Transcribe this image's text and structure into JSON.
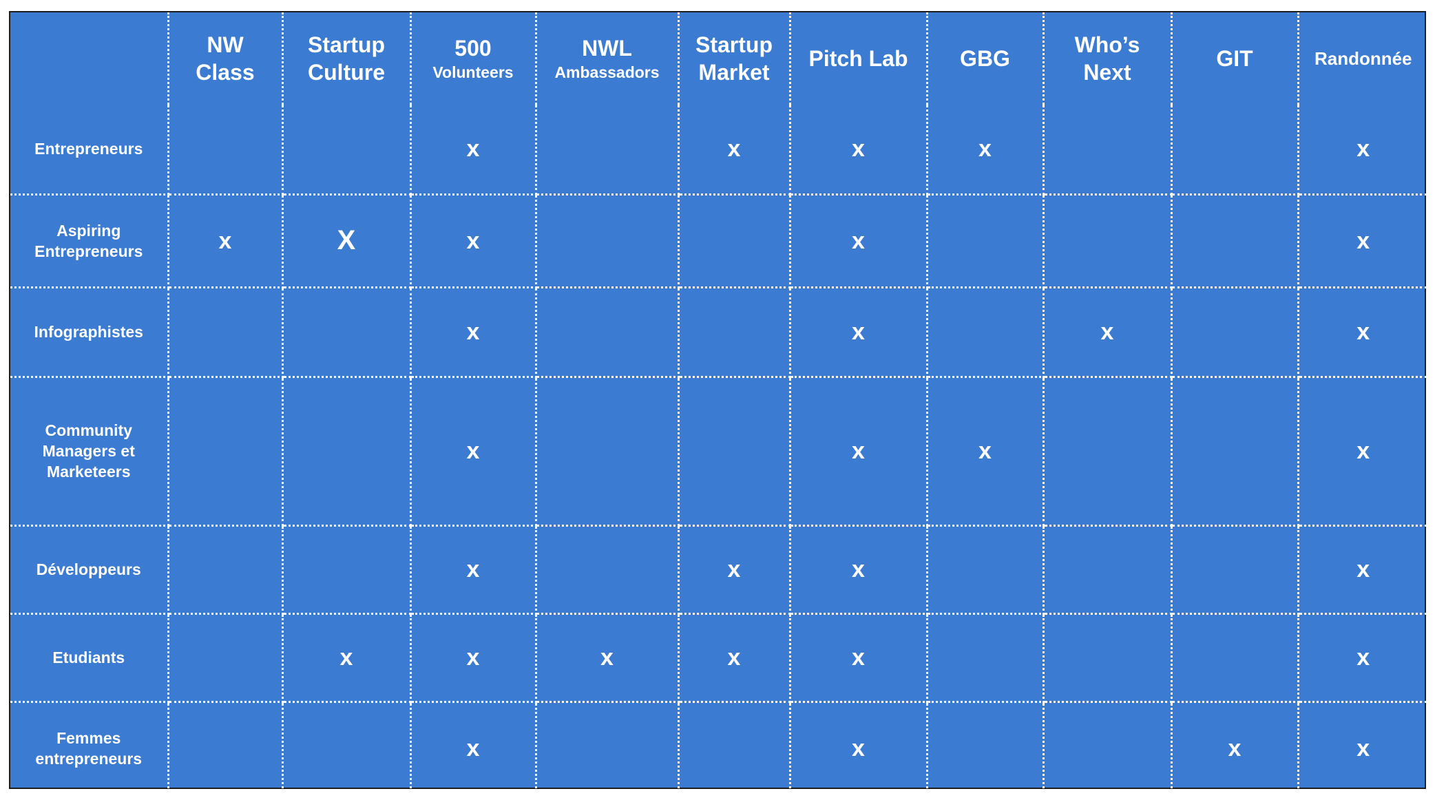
{
  "chart_data": {
    "type": "table",
    "columns": [
      {
        "line1": "NW",
        "line2": "Class",
        "style": "two-big"
      },
      {
        "line1": "Startup",
        "line2": "Culture",
        "style": "two-big"
      },
      {
        "line1": "500",
        "line2": "Volunteers",
        "style": "big-small"
      },
      {
        "line1": "NWL",
        "line2": "Ambassadors",
        "style": "big-small"
      },
      {
        "line1": "Startup",
        "line2": "Market",
        "style": "two-big"
      },
      {
        "line1": "Pitch Lab",
        "line2": "",
        "style": "one-big"
      },
      {
        "line1": "GBG",
        "line2": "",
        "style": "one-big"
      },
      {
        "line1": "Who’s",
        "line2": "Next",
        "style": "two-big"
      },
      {
        "line1": "GIT",
        "line2": "",
        "style": "one-big"
      },
      {
        "line1": "Randonnée",
        "line2": "",
        "style": "one-small"
      }
    ],
    "rows": [
      {
        "label": "Entrepreneurs",
        "cells": [
          "",
          "",
          "x",
          "",
          "x",
          "x",
          "x",
          "",
          "",
          "x"
        ]
      },
      {
        "label": "Aspiring\nEntrepreneurs",
        "cells": [
          "x",
          "X",
          "x",
          "",
          "",
          "x",
          "",
          "",
          "",
          "x"
        ]
      },
      {
        "label": "Infographistes",
        "cells": [
          "",
          "",
          "x",
          "",
          "",
          "x",
          "",
          "x",
          "",
          "x"
        ]
      },
      {
        "label": "Community\nManagers et\nMarketeers",
        "cells": [
          "",
          "",
          "x",
          "",
          "",
          "x",
          "x",
          "",
          "",
          "x"
        ]
      },
      {
        "label": "Développeurs",
        "cells": [
          "",
          "",
          "x",
          "",
          "x",
          "x",
          "",
          "",
          "",
          "x"
        ]
      },
      {
        "label": "Etudiants",
        "cells": [
          "",
          "x",
          "x",
          "x",
          "x",
          "x",
          "",
          "",
          "",
          "x"
        ]
      },
      {
        "label": "Femmes\nentrepreneurs",
        "cells": [
          "",
          "",
          "x",
          "",
          "",
          "x",
          "",
          "",
          "x",
          "x"
        ]
      }
    ]
  },
  "colors": {
    "background": "#3b7bd1",
    "text": "#ffffff",
    "grid": "#ffffff"
  }
}
